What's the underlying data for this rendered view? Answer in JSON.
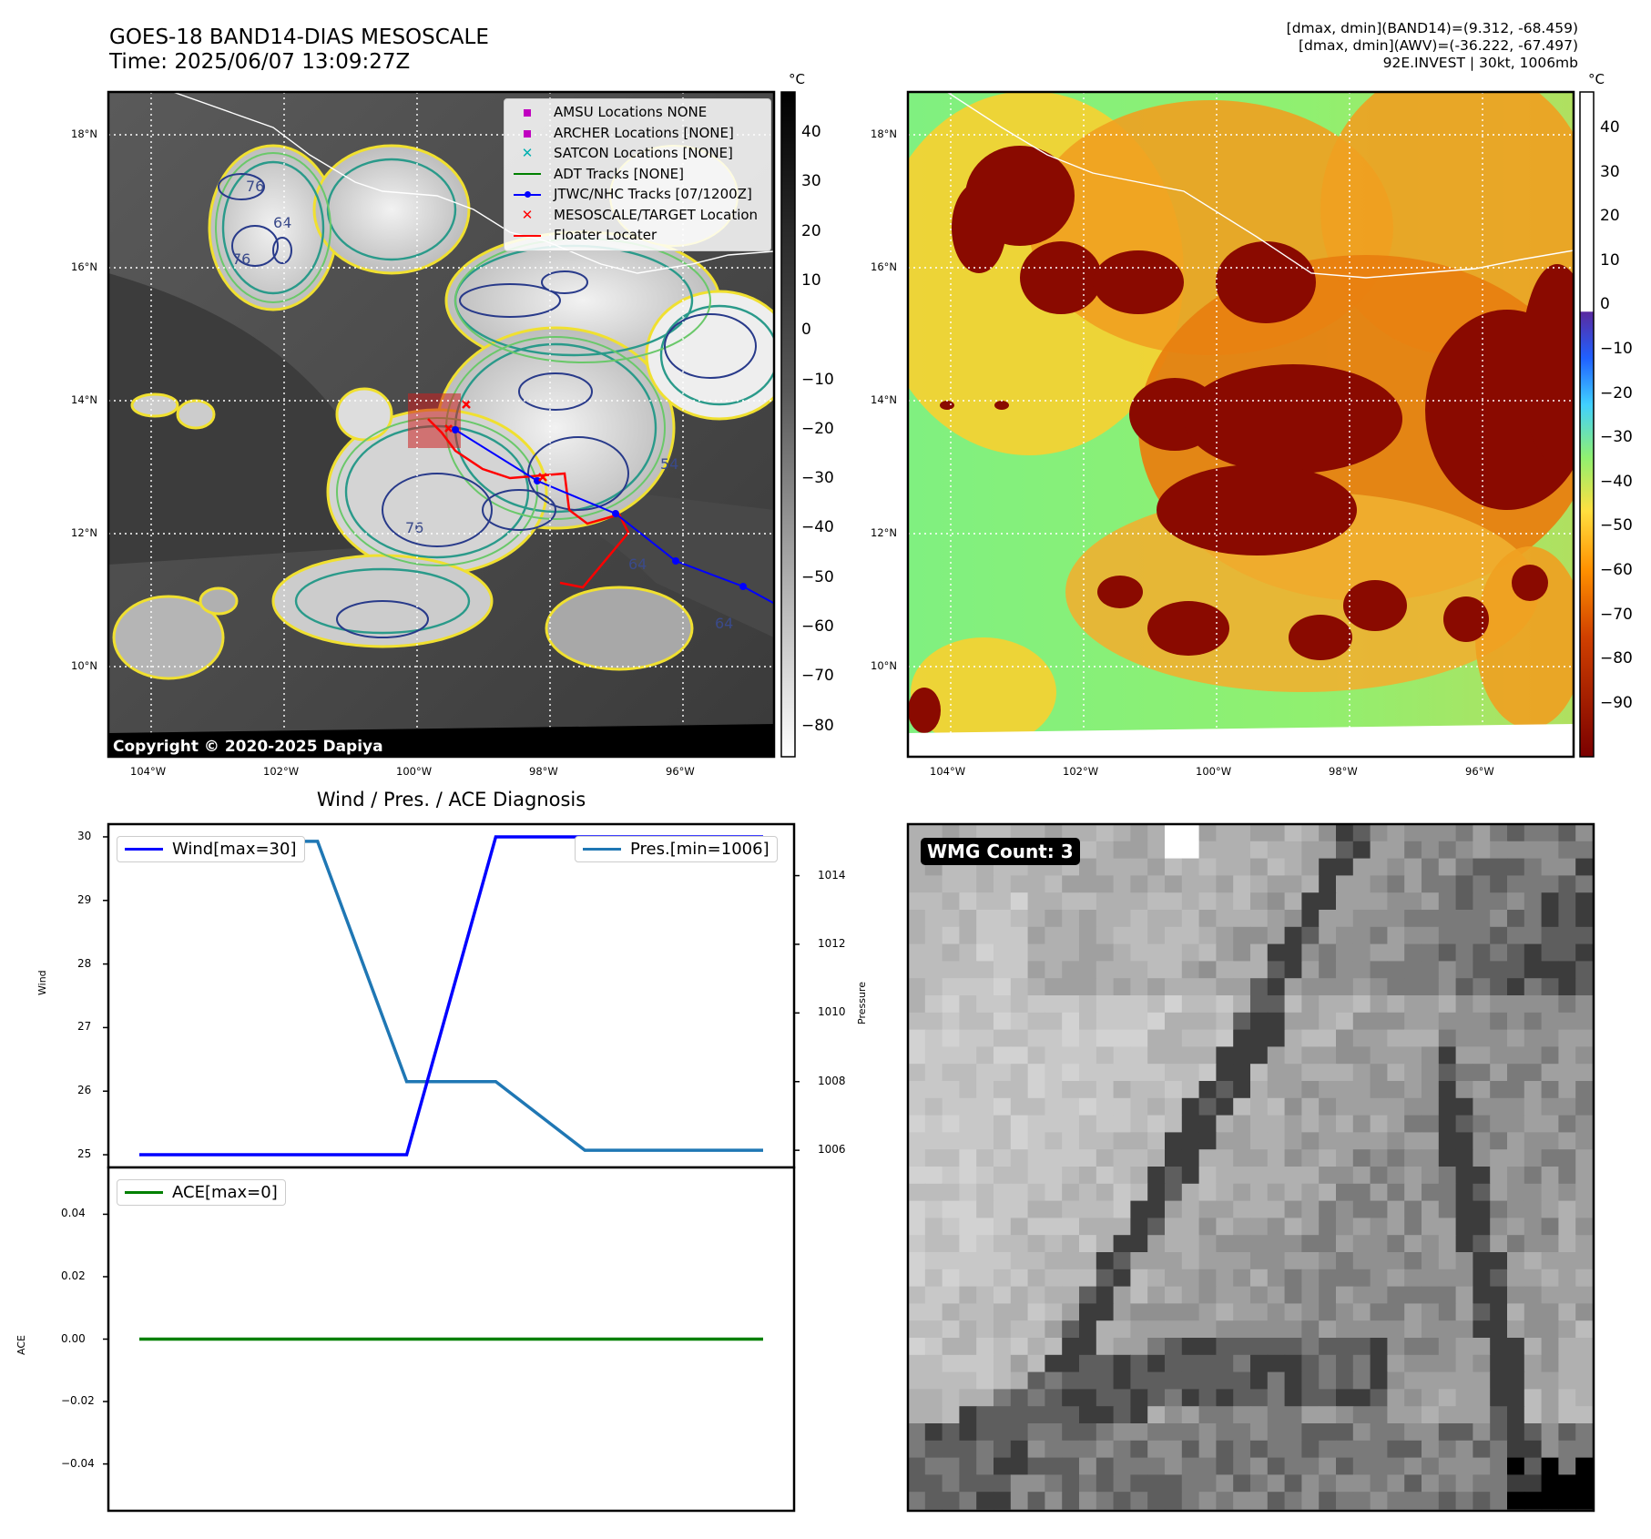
{
  "header": {
    "title_line1": "GOES-18 BAND14-DIAS MESOSCALE",
    "title_line2": "Time: 2025/06/07 13:09:27Z",
    "stats_line1": "[dmax, dmin](BAND14)=(9.312, -68.459)",
    "stats_line2": "[dmax, dmin](AWV)=(-36.222, -67.497)",
    "stats_line3": "92E.INVEST | 30kt, 1006mb"
  },
  "map": {
    "lat_labels": [
      "18°N",
      "16°N",
      "14°N",
      "12°N",
      "10°N"
    ],
    "lon_labels": [
      "104°W",
      "102°W",
      "100°W",
      "98°W",
      "96°W"
    ],
    "copyright": "Copyright © 2020-2025 Dapiya",
    "contour_labels": [
      "76",
      "76",
      "64",
      "54",
      "64",
      "76",
      "64"
    ],
    "legend": [
      {
        "label": "AMSU Locations NONE",
        "color": "#c000c0",
        "symbol": "square"
      },
      {
        "label": "ARCHER Locations [NONE]",
        "color": "#c000c0",
        "symbol": "square"
      },
      {
        "label": "SATCON Locations [NONE]",
        "color": "#00b0b0",
        "symbol": "x"
      },
      {
        "label": "ADT Tracks [NONE]",
        "color": "#008000",
        "symbol": "line"
      },
      {
        "label": "JTWC/NHC Tracks [07/1200Z]",
        "color": "#0000ff",
        "symbol": "line-dot"
      },
      {
        "label": "MESOSCALE/TARGET Location",
        "color": "#ff0000",
        "symbol": "x"
      },
      {
        "label": "Floater Locater",
        "color": "#ff0000",
        "symbol": "line"
      }
    ]
  },
  "colorbar_left": {
    "unit": "°C",
    "ticks": [
      "40",
      "30",
      "20",
      "10",
      "0",
      "−10",
      "−20",
      "−30",
      "−40",
      "−50",
      "−60",
      "−70",
      "−80"
    ]
  },
  "colorbar_right": {
    "unit": "°C",
    "ticks": [
      "40",
      "30",
      "20",
      "10",
      "0",
      "−10",
      "−20",
      "−30",
      "−40",
      "−50",
      "−60",
      "−70",
      "−80",
      "−90"
    ]
  },
  "wmg": {
    "label": "WMG Count: 3"
  },
  "chart_data": [
    {
      "type": "line",
      "title": "Wind / Pres. / ACE Diagnosis",
      "x": [
        0,
        1,
        2,
        3,
        4,
        5,
        6,
        7
      ],
      "series": [
        {
          "name": "Wind[max=30]",
          "axis": "left",
          "color": "#0000ff",
          "values": [
            25,
            25,
            25,
            25,
            30,
            30,
            30,
            30
          ]
        },
        {
          "name": "Pres.[min=1006]",
          "axis": "right",
          "color": "#1f77b4",
          "values": [
            1015,
            1015,
            1015,
            1008,
            1008,
            1006,
            1006,
            1006
          ]
        }
      ],
      "ylabel": "Wind",
      "ylim": [
        24.8,
        30.2
      ],
      "yticks": [
        "25",
        "26",
        "27",
        "28",
        "29",
        "30"
      ],
      "ylabel_right": "Pressure",
      "ylim_right": [
        1005.5,
        1015.5
      ],
      "yticks_right": [
        "1006",
        "1008",
        "1010",
        "1012",
        "1014"
      ]
    },
    {
      "type": "line",
      "x": [
        0,
        1,
        2,
        3,
        4,
        5,
        6,
        7
      ],
      "series": [
        {
          "name": "ACE[max=0]",
          "color": "#008000",
          "values": [
            0,
            0,
            0,
            0,
            0,
            0,
            0,
            0
          ]
        }
      ],
      "ylabel": "ACE",
      "ylim": [
        -0.055,
        0.055
      ],
      "yticks": [
        "0.04",
        "0.02",
        "0.00",
        "−0.02",
        "−0.04"
      ]
    }
  ]
}
